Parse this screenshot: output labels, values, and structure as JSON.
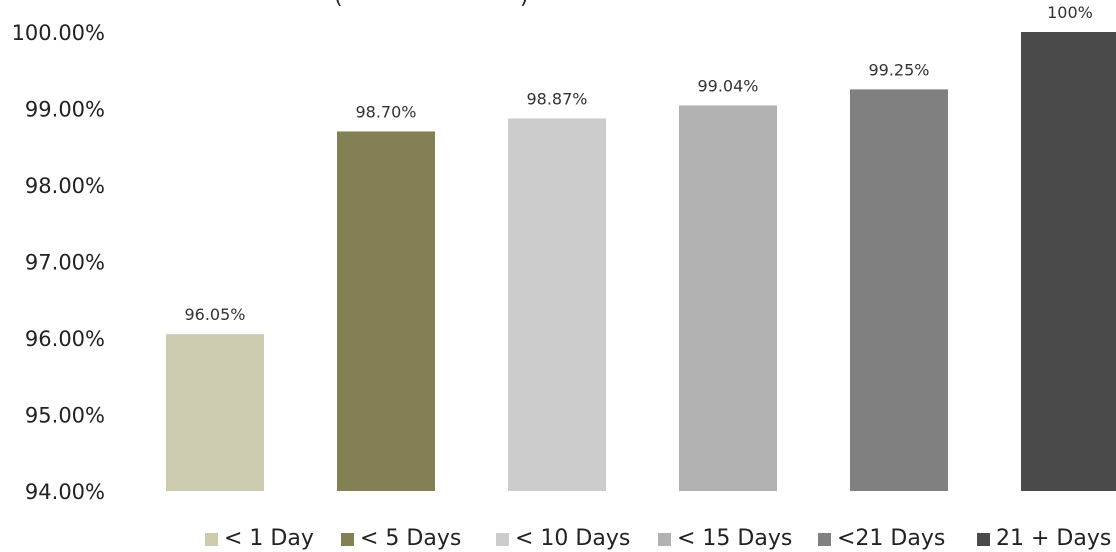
{
  "chart_data": {
    "type": "bar",
    "title": "",
    "xlabel": "",
    "ylabel": "",
    "categories": [
      "< 1 Day",
      "< 5 Days",
      "< 10 Days",
      "< 15 Days",
      "<21 Days",
      "21 + Days"
    ],
    "values": [
      96.05,
      98.7,
      98.87,
      99.04,
      99.25,
      100
    ],
    "data_labels": [
      "96.05%",
      "98.70%",
      "98.87%",
      "99.04%",
      "99.25%",
      "100%"
    ],
    "colors": [
      "#cccbaf",
      "#838055",
      "#cccccc",
      "#b2b2b2",
      "#808080",
      "#4a4a4a"
    ],
    "ylim": [
      94,
      100
    ],
    "yticks": [
      94,
      95,
      96,
      97,
      98,
      99,
      100
    ],
    "ytick_labels": [
      "94.00%",
      "95.00%",
      "96.00%",
      "97.00%",
      "98.00%",
      "99.00%",
      "100.00%"
    ],
    "grid": false,
    "legend_position": "bottom"
  }
}
